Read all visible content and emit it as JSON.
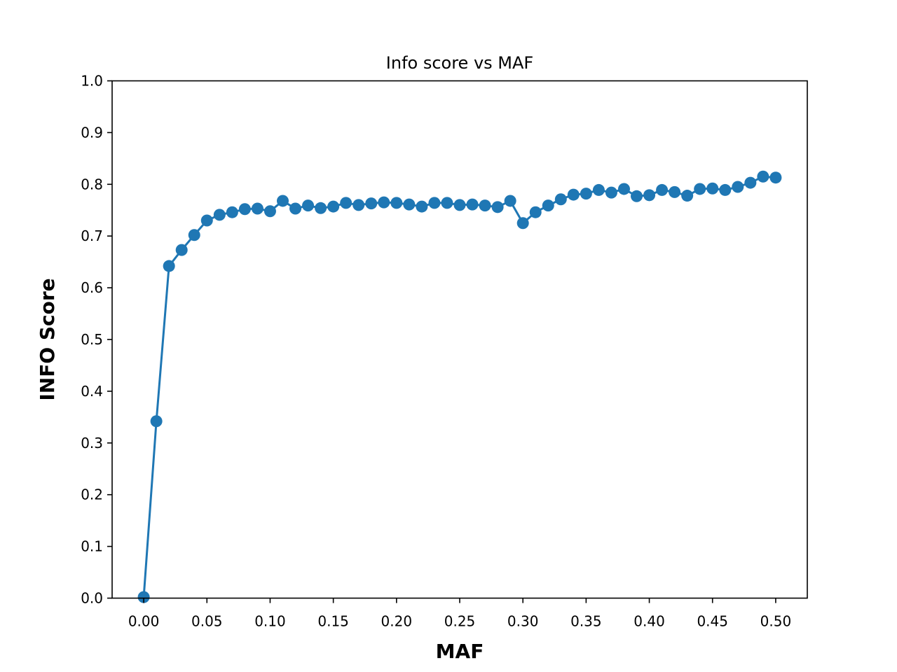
{
  "chart_data": {
    "type": "line",
    "title": "Info score vs MAF",
    "xlabel": "MAF",
    "ylabel": "INFO Score",
    "xlim": [
      -0.025,
      0.525
    ],
    "ylim": [
      0.0,
      1.0
    ],
    "xticks": [
      "0.00",
      "0.05",
      "0.10",
      "0.15",
      "0.20",
      "0.25",
      "0.30",
      "0.35",
      "0.40",
      "0.45",
      "0.50"
    ],
    "yticks": [
      "0.0",
      "0.1",
      "0.2",
      "0.3",
      "0.4",
      "0.5",
      "0.6",
      "0.7",
      "0.8",
      "0.9",
      "1.0"
    ],
    "grid": false,
    "color": "#1f77b4",
    "marker": "circle",
    "series": [
      {
        "x": [
          0.0,
          0.01,
          0.02,
          0.03,
          0.04,
          0.05,
          0.06,
          0.07,
          0.08,
          0.09,
          0.1,
          0.11,
          0.12,
          0.13,
          0.14,
          0.15,
          0.16,
          0.17,
          0.18,
          0.19,
          0.2,
          0.21,
          0.22,
          0.23,
          0.24,
          0.25,
          0.26,
          0.27,
          0.28,
          0.29,
          0.3,
          0.31,
          0.32,
          0.33,
          0.34,
          0.35,
          0.36,
          0.37,
          0.38,
          0.39,
          0.4,
          0.41,
          0.42,
          0.43,
          0.44,
          0.45,
          0.46,
          0.47,
          0.48,
          0.49,
          0.5
        ],
        "y": [
          0.002,
          0.342,
          0.642,
          0.673,
          0.702,
          0.73,
          0.741,
          0.746,
          0.752,
          0.753,
          0.748,
          0.768,
          0.753,
          0.759,
          0.754,
          0.757,
          0.764,
          0.76,
          0.763,
          0.765,
          0.764,
          0.761,
          0.757,
          0.764,
          0.764,
          0.76,
          0.761,
          0.759,
          0.756,
          0.768,
          0.725,
          0.746,
          0.759,
          0.771,
          0.78,
          0.782,
          0.789,
          0.784,
          0.791,
          0.777,
          0.779,
          0.789,
          0.785,
          0.778,
          0.791,
          0.792,
          0.789,
          0.795,
          0.803,
          0.815,
          0.813
        ]
      }
    ]
  }
}
